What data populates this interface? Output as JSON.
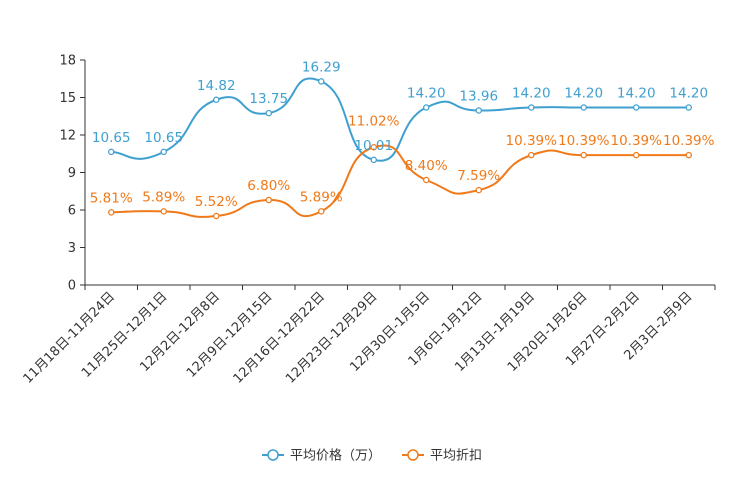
{
  "chart_data": {
    "type": "line",
    "title": "",
    "xlabel": "",
    "ylabel": "",
    "ylim": [
      0,
      18
    ],
    "yticks": [
      0,
      3,
      6,
      9,
      12,
      15,
      18
    ],
    "grid": false,
    "legend_position": "bottom-center",
    "categories": [
      "11月18日-11月24日",
      "11月25日-12月1日",
      "12月2日-12月8日",
      "12月9日-12月15日",
      "12月16日-12月22日",
      "12月23日-12月29日",
      "12月30日-1月5日",
      "1月6日-1月12日",
      "1月13日-1月19日",
      "1月20日-1月26日",
      "1月27日-2月2日",
      "2月3日-2月9日"
    ],
    "series": [
      {
        "name": "平均价格（万）",
        "color": "#3fa0d0",
        "values": [
          10.65,
          10.65,
          14.82,
          13.75,
          16.29,
          10.01,
          14.2,
          13.96,
          14.2,
          14.2,
          14.2,
          14.2
        ],
        "labels": [
          "10.65",
          "10.65",
          "14.82",
          "13.75",
          "16.29",
          "10.01",
          "14.20",
          "13.96",
          "14.20",
          "14.20",
          "14.20",
          "14.20"
        ]
      },
      {
        "name": "平均折扣",
        "color": "#f07a1a",
        "values": [
          5.81,
          5.89,
          5.52,
          6.8,
          5.89,
          11.02,
          8.4,
          7.59,
          10.39,
          10.39,
          10.39,
          10.39
        ],
        "labels": [
          "5.81%",
          "5.89%",
          "5.52%",
          "6.80%",
          "5.89%",
          "11.02%",
          "8.40%",
          "7.59%",
          "10.39%",
          "10.39%",
          "10.39%",
          "10.39%"
        ]
      }
    ]
  }
}
